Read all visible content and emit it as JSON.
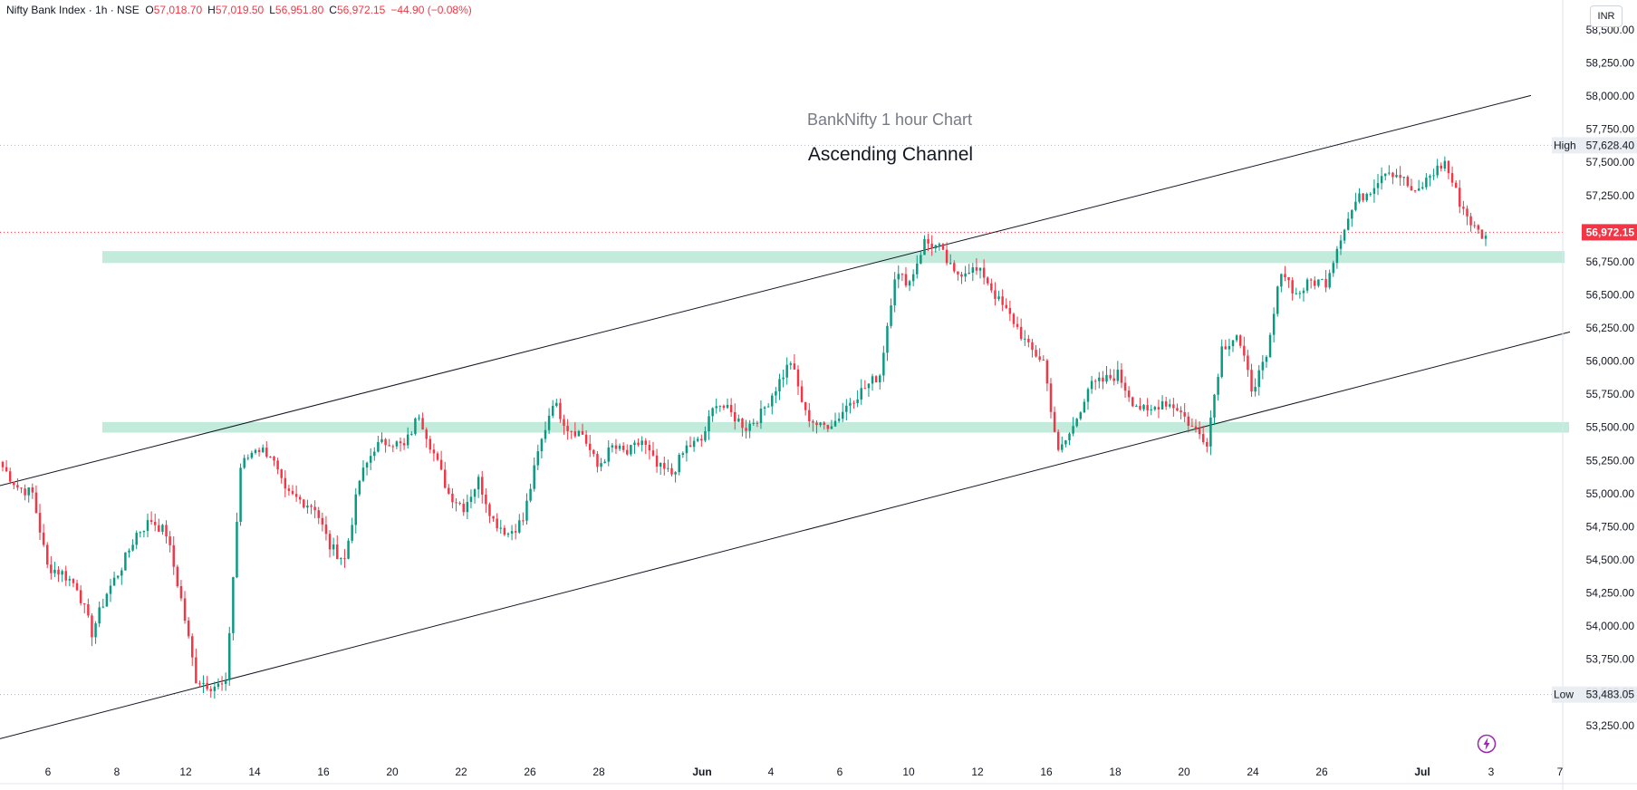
{
  "header": {
    "symbol": "Nifty Bank Index · 1h · NSE",
    "o_label": "O",
    "o_value": "57,018.70",
    "h_label": "H",
    "h_value": "57,019.50",
    "l_label": "L",
    "l_value": "56,951.80",
    "c_label": "C",
    "c_value": "56,972.15",
    "change": "−44.90 (−0.08%)"
  },
  "currency": "INR",
  "colors": {
    "up": "#089981",
    "down": "#f23645",
    "zone": "#b7e8d6",
    "price_line": "#f23645",
    "trend_line": "#131722"
  },
  "chart_data": {
    "type": "candlestick",
    "title": "BankNifty 1 hour Chart",
    "subtitle": "Ascending Channel",
    "y_axis": {
      "range": [
        53050,
        58650
      ],
      "ticks": [
        "58,500.00",
        "58,250.00",
        "58,000.00",
        "57,750.00",
        "57,500.00",
        "57,250.00",
        "57,000.00",
        "56,750.00",
        "56,500.00",
        "56,250.00",
        "56,000.00",
        "55,750.00",
        "55,500.00",
        "55,250.00",
        "55,000.00",
        "54,750.00",
        "54,500.00",
        "54,250.00",
        "54,000.00",
        "53,750.00",
        "53,500.00",
        "53,250.00"
      ]
    },
    "x_axis": {
      "ticks": [
        "6",
        "8",
        "12",
        "14",
        "16",
        "20",
        "22",
        "26",
        "28",
        "Jun",
        "4",
        "6",
        "10",
        "12",
        "16",
        "18",
        "20",
        "24",
        "26",
        "Jul",
        "3",
        "7"
      ]
    },
    "markers": [
      {
        "label": "High",
        "value_text": "57,628.40",
        "value": 57628.4
      },
      {
        "label": "Low",
        "value_text": "53,483.05",
        "value": 53483.05
      }
    ],
    "last_price": {
      "value_text": "56,972.15",
      "value": 56972.15
    },
    "zones": [
      {
        "low": 56740,
        "high": 56830
      },
      {
        "low": 55460,
        "high": 55540
      }
    ],
    "candles_path": [
      55200,
      55050,
      55000,
      54450,
      54400,
      54300,
      53950,
      54250,
      54450,
      54700,
      54800,
      54700,
      54200,
      53600,
      53550,
      53550,
      55200,
      55350,
      55300,
      55000,
      54950,
      54900,
      54600,
      54500,
      55100,
      55350,
      55400,
      55350,
      55600,
      55300,
      55000,
      54900,
      55100,
      54800,
      54700,
      54800,
      55300,
      55700,
      55500,
      55450,
      55200,
      55350,
      55300,
      55400,
      55200,
      55150,
      55350,
      55400,
      55700,
      55600,
      55500,
      55600,
      55800,
      56000,
      55600,
      55500,
      55550,
      55700,
      55800,
      55900,
      56650,
      56600,
      56900,
      56850,
      56650,
      56700,
      56650,
      56450,
      56300,
      56100,
      56000,
      55300,
      55500,
      55800,
      55850,
      55900,
      55700,
      55600,
      55700,
      55650,
      55500,
      55400,
      56100,
      56200,
      55800,
      56000,
      56700,
      56500,
      56600,
      56600,
      56950,
      57200,
      57300,
      57450,
      57400,
      57250,
      57400,
      57500,
      57200,
      57000,
      56900
    ]
  }
}
